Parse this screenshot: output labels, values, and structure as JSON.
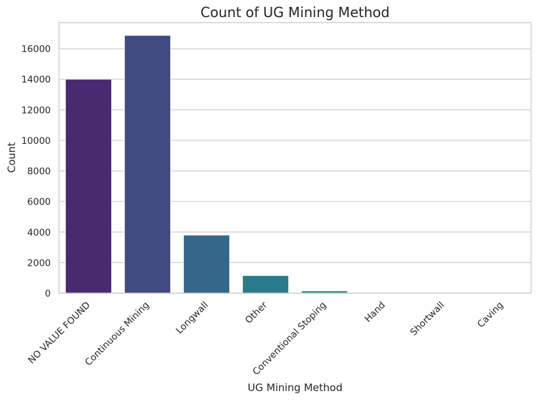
{
  "chart_data": {
    "type": "bar",
    "title": "Count of UG Mining Method",
    "xlabel": "UG Mining Method",
    "ylabel": "Count",
    "categories": [
      "NO VALUE FOUND",
      "Continuous Mining",
      "Longwall",
      "Other",
      "Conventional Stoping",
      "Hand",
      "Shortwall",
      "Caving"
    ],
    "values": [
      14000,
      16870,
      3800,
      1150,
      150,
      10,
      8,
      5
    ],
    "colors": [
      "#482a70",
      "#414b82",
      "#35678a",
      "#2b7b8a",
      "#22988a",
      "#2bb07a",
      "#56c564",
      "#95d840"
    ],
    "yticks": [
      0,
      2000,
      4000,
      6000,
      8000,
      10000,
      12000,
      14000,
      16000
    ],
    "ylim": [
      0,
      17710
    ],
    "grid": true,
    "legend": "none"
  }
}
